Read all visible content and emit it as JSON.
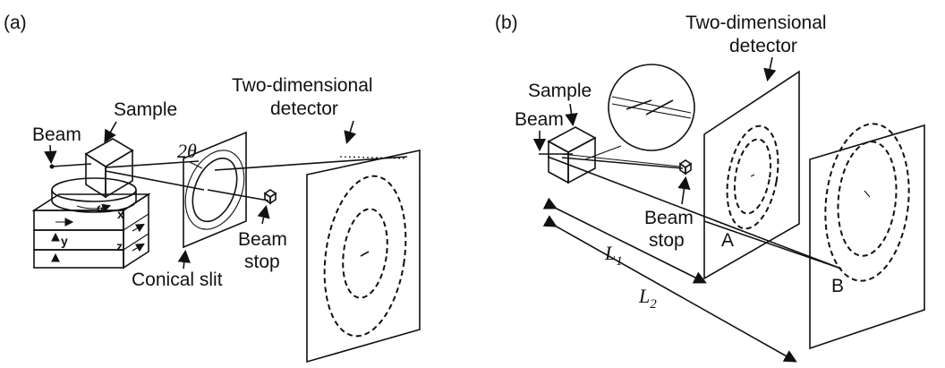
{
  "panel_a": {
    "tag": "(a)",
    "labels": {
      "beam": "Beam",
      "sample": "Sample",
      "two_theta": "2θ",
      "detector_line1": "Two-dimensional",
      "detector_line2": "detector",
      "conical_slit": "Conical slit",
      "beam_stop_line1": "Beam",
      "beam_stop_line2": "stop",
      "axis_omega": "ω",
      "axis_x": "x",
      "axis_y": "y",
      "axis_z": "z"
    }
  },
  "panel_b": {
    "tag": "(b)",
    "labels": {
      "detector_line1": "Two-dimensional",
      "detector_line2": "detector",
      "sample": "Sample",
      "beam": "Beam",
      "beam_stop_line1": "Beam",
      "beam_stop_line2": "stop",
      "point_a": "A",
      "point_b": "B",
      "l1": "L",
      "l1_sub": "1",
      "l2": "L",
      "l2_sub": "2"
    }
  },
  "colors": {
    "ink": "#111111",
    "background": "#ffffff"
  }
}
